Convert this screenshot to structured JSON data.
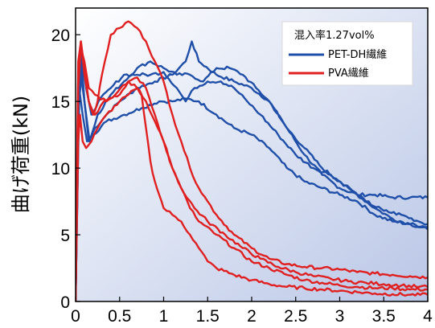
{
  "chart_data": {
    "type": "line",
    "ylabel": "曲げ荷重(kN)",
    "xlabel": "",
    "xlim": [
      0,
      4
    ],
    "ylim": [
      0,
      22
    ],
    "x_ticks": [
      "0",
      "0.5",
      "1",
      "1.5",
      "2",
      "2.5",
      "3",
      "3.5",
      "4"
    ],
    "y_ticks": [
      "0",
      "5",
      "10",
      "15",
      "20"
    ],
    "legend": {
      "title": "混入率1.27vol%",
      "position": "top-right",
      "entries": [
        {
          "label": "PET-DH繊維",
          "color": "#1f4fa8"
        },
        {
          "label": "PVA繊維",
          "color": "#e02020"
        }
      ]
    },
    "background": {
      "gradient_from": "#ffffff",
      "gradient_to": "#b9c6e6"
    },
    "series": [
      {
        "name": "PET-DH繊維",
        "color": "#1f4fa8",
        "points": [
          [
            0,
            0
          ],
          [
            0.03,
            14
          ],
          [
            0.06,
            17
          ],
          [
            0.1,
            15
          ],
          [
            0.15,
            12
          ],
          [
            0.22,
            13
          ],
          [
            0.35,
            14
          ],
          [
            0.5,
            15
          ],
          [
            0.7,
            16
          ],
          [
            0.9,
            16.5
          ],
          [
            1.1,
            17
          ],
          [
            1.25,
            18
          ],
          [
            1.32,
            19.5
          ],
          [
            1.4,
            18
          ],
          [
            1.6,
            17
          ],
          [
            1.8,
            16.5
          ],
          [
            2.0,
            16
          ],
          [
            2.2,
            15
          ],
          [
            2.4,
            13
          ],
          [
            2.6,
            11
          ],
          [
            2.8,
            9.5
          ],
          [
            3.0,
            8.5
          ],
          [
            3.2,
            8
          ],
          [
            3.4,
            8
          ],
          [
            3.6,
            7.8
          ],
          [
            3.8,
            7.8
          ],
          [
            4.0,
            7.8
          ]
        ]
      },
      {
        "name": "PET-DH繊維",
        "color": "#1f4fa8",
        "points": [
          [
            0,
            0
          ],
          [
            0.04,
            16
          ],
          [
            0.08,
            14
          ],
          [
            0.13,
            12
          ],
          [
            0.2,
            12.5
          ],
          [
            0.35,
            13.5
          ],
          [
            0.55,
            14
          ],
          [
            0.75,
            14.5
          ],
          [
            0.95,
            15
          ],
          [
            1.1,
            15
          ],
          [
            1.25,
            15.2
          ],
          [
            1.4,
            15
          ],
          [
            1.6,
            14
          ],
          [
            1.8,
            13
          ],
          [
            2.0,
            12.5
          ],
          [
            2.2,
            11.5
          ],
          [
            2.4,
            10
          ],
          [
            2.6,
            9
          ],
          [
            2.8,
            8.5
          ],
          [
            3.0,
            8
          ],
          [
            3.2,
            7.5
          ],
          [
            3.4,
            6.5
          ],
          [
            3.6,
            6
          ],
          [
            3.8,
            5.8
          ],
          [
            4.0,
            5.6
          ]
        ]
      },
      {
        "name": "PET-DH繊維",
        "color": "#1f4fa8",
        "points": [
          [
            0,
            0
          ],
          [
            0.03,
            13
          ],
          [
            0.06,
            19
          ],
          [
            0.1,
            15
          ],
          [
            0.16,
            12
          ],
          [
            0.25,
            14
          ],
          [
            0.4,
            15.5
          ],
          [
            0.55,
            16.5
          ],
          [
            0.7,
            17.5
          ],
          [
            0.85,
            18
          ],
          [
            1.0,
            17.5
          ],
          [
            1.15,
            17
          ],
          [
            1.3,
            17
          ],
          [
            1.45,
            16.5
          ],
          [
            1.6,
            17.5
          ],
          [
            1.75,
            17.5
          ],
          [
            1.9,
            17
          ],
          [
            2.05,
            16
          ],
          [
            2.2,
            15
          ],
          [
            2.4,
            13
          ],
          [
            2.6,
            11.5
          ],
          [
            2.8,
            10
          ],
          [
            3.0,
            9
          ],
          [
            3.2,
            8
          ],
          [
            3.4,
            7
          ],
          [
            3.6,
            6.2
          ],
          [
            3.8,
            5.8
          ],
          [
            4.0,
            5.4
          ]
        ]
      },
      {
        "name": "PET-DH繊維",
        "color": "#1f4fa8",
        "points": [
          [
            0,
            0
          ],
          [
            0.04,
            15
          ],
          [
            0.08,
            18
          ],
          [
            0.12,
            16
          ],
          [
            0.18,
            14
          ],
          [
            0.26,
            15
          ],
          [
            0.4,
            16
          ],
          [
            0.55,
            17
          ],
          [
            0.7,
            17
          ],
          [
            0.85,
            17
          ],
          [
            1.0,
            17.2
          ],
          [
            1.15,
            16
          ],
          [
            1.25,
            15
          ],
          [
            1.35,
            16
          ],
          [
            1.5,
            16.5
          ],
          [
            1.65,
            16.5
          ],
          [
            1.8,
            16
          ],
          [
            1.95,
            15
          ],
          [
            2.1,
            14
          ],
          [
            2.3,
            12.5
          ],
          [
            2.5,
            11
          ],
          [
            2.7,
            10
          ],
          [
            2.9,
            9.5
          ],
          [
            3.1,
            8.5
          ],
          [
            3.3,
            7.5
          ],
          [
            3.5,
            6.8
          ],
          [
            3.7,
            6.5
          ],
          [
            3.9,
            6
          ],
          [
            4.0,
            5.8
          ]
        ]
      },
      {
        "name": "PVA繊維",
        "color": "#e02020",
        "points": [
          [
            0,
            0
          ],
          [
            0.03,
            18
          ],
          [
            0.06,
            19.5
          ],
          [
            0.1,
            17
          ],
          [
            0.15,
            15
          ],
          [
            0.2,
            14
          ],
          [
            0.25,
            15
          ],
          [
            0.3,
            17
          ],
          [
            0.4,
            20
          ],
          [
            0.5,
            20.5
          ],
          [
            0.6,
            21
          ],
          [
            0.7,
            20.5
          ],
          [
            0.8,
            19.5
          ],
          [
            0.9,
            18
          ],
          [
            1.0,
            16.5
          ],
          [
            1.1,
            14
          ],
          [
            1.2,
            12
          ],
          [
            1.3,
            10
          ],
          [
            1.4,
            8.5
          ],
          [
            1.5,
            7.5
          ],
          [
            1.6,
            6.5
          ],
          [
            1.8,
            5
          ],
          [
            2.0,
            4
          ],
          [
            2.2,
            3.2
          ],
          [
            2.4,
            2.8
          ],
          [
            2.6,
            2.6
          ],
          [
            2.8,
            2.5
          ],
          [
            3.0,
            2.4
          ],
          [
            3.2,
            2.2
          ],
          [
            3.4,
            2.1
          ],
          [
            3.6,
            2
          ],
          [
            3.8,
            1.9
          ],
          [
            4.0,
            1.8
          ]
        ]
      },
      {
        "name": "PVA繊維",
        "color": "#e02020",
        "points": [
          [
            0,
            0
          ],
          [
            0.03,
            17
          ],
          [
            0.06,
            19.5
          ],
          [
            0.1,
            17.5
          ],
          [
            0.15,
            15
          ],
          [
            0.22,
            14
          ],
          [
            0.32,
            15
          ],
          [
            0.45,
            15.5
          ],
          [
            0.6,
            16.5
          ],
          [
            0.7,
            16.8
          ],
          [
            0.8,
            16
          ],
          [
            0.9,
            14
          ],
          [
            1.0,
            12
          ],
          [
            1.1,
            10
          ],
          [
            1.2,
            8.5
          ],
          [
            1.3,
            7
          ],
          [
            1.4,
            6
          ],
          [
            1.6,
            5
          ],
          [
            1.8,
            4
          ],
          [
            2.0,
            3
          ],
          [
            2.2,
            2.5
          ],
          [
            2.4,
            2
          ],
          [
            2.6,
            1.6
          ],
          [
            2.8,
            1.4
          ],
          [
            3.0,
            1.2
          ],
          [
            3.2,
            1.1
          ],
          [
            3.4,
            1
          ],
          [
            3.6,
            1
          ],
          [
            3.8,
            0.9
          ],
          [
            4.0,
            0.9
          ]
        ]
      },
      {
        "name": "PVA繊維",
        "color": "#e02020",
        "points": [
          [
            0,
            0
          ],
          [
            0.03,
            12
          ],
          [
            0.05,
            14
          ],
          [
            0.08,
            12
          ],
          [
            0.12,
            11.5
          ],
          [
            0.18,
            12
          ],
          [
            0.25,
            13
          ],
          [
            0.35,
            14
          ],
          [
            0.5,
            15
          ],
          [
            0.6,
            15.5
          ],
          [
            0.7,
            16
          ],
          [
            0.75,
            15.5
          ],
          [
            0.8,
            13
          ],
          [
            0.85,
            10.5
          ],
          [
            0.9,
            9
          ],
          [
            0.95,
            8
          ],
          [
            1.0,
            7
          ],
          [
            1.1,
            6.5
          ],
          [
            1.2,
            6
          ],
          [
            1.3,
            5
          ],
          [
            1.4,
            4
          ],
          [
            1.5,
            3
          ],
          [
            1.6,
            2.5
          ],
          [
            1.8,
            2
          ],
          [
            2.0,
            1.6
          ],
          [
            2.2,
            1.3
          ],
          [
            2.4,
            1.1
          ],
          [
            2.6,
            1
          ],
          [
            2.8,
            0.9
          ],
          [
            3.0,
            0.8
          ],
          [
            3.2,
            0.7
          ],
          [
            3.4,
            0.6
          ],
          [
            3.6,
            0.55
          ],
          [
            3.8,
            0.5
          ],
          [
            4.0,
            0.5
          ]
        ]
      },
      {
        "name": "PVA繊維",
        "color": "#e02020",
        "points": [
          [
            0,
            0
          ],
          [
            0.03,
            16
          ],
          [
            0.06,
            19
          ],
          [
            0.1,
            18
          ],
          [
            0.15,
            16
          ],
          [
            0.22,
            15.5
          ],
          [
            0.35,
            15
          ],
          [
            0.5,
            15.5
          ],
          [
            0.6,
            16.5
          ],
          [
            0.7,
            16
          ],
          [
            0.8,
            15
          ],
          [
            0.9,
            13.5
          ],
          [
            1.0,
            12
          ],
          [
            1.1,
            10
          ],
          [
            1.2,
            8.5
          ],
          [
            1.35,
            7
          ],
          [
            1.5,
            6
          ],
          [
            1.7,
            5
          ],
          [
            1.9,
            4
          ],
          [
            2.1,
            3.2
          ],
          [
            2.3,
            2.6
          ],
          [
            2.5,
            2.2
          ],
          [
            2.7,
            1.9
          ],
          [
            2.9,
            1.7
          ],
          [
            3.1,
            1.5
          ],
          [
            3.3,
            1.4
          ],
          [
            3.5,
            1.3
          ],
          [
            3.7,
            1.2
          ],
          [
            3.9,
            1.1
          ],
          [
            4.0,
            1.1
          ]
        ]
      }
    ]
  }
}
